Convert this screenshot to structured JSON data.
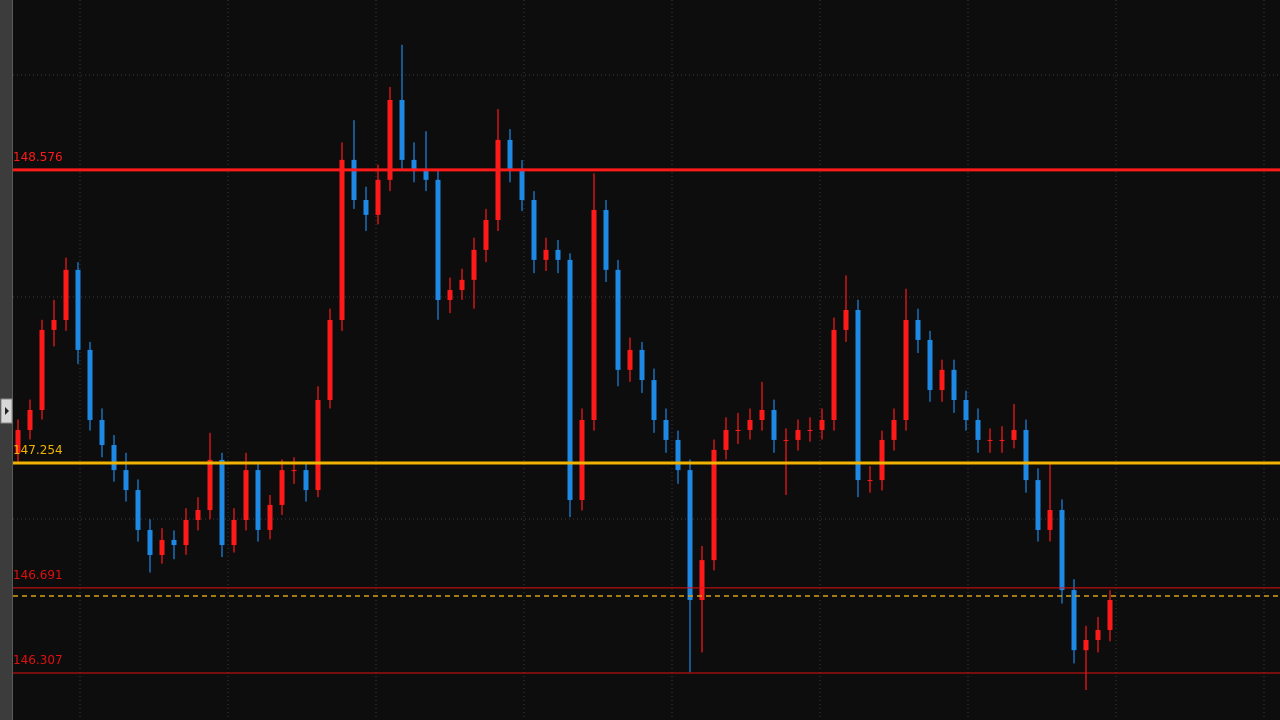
{
  "chart_data": {
    "type": "candlestick",
    "ylim": [
      146.095,
      149.342
    ],
    "up_color": "#ff1a1a",
    "down_color": "#1e88e5",
    "grid": true,
    "current_price": {
      "value": 146.654,
      "color": "#d4a017"
    },
    "levels": [
      {
        "value": 148.576,
        "color": "#ff1a1a",
        "width": 3
      },
      {
        "value": 147.254,
        "color": "#f0b400",
        "width": 3
      },
      {
        "value": 146.691,
        "color": "#e01010",
        "width": 1
      },
      {
        "value": 146.307,
        "color": "#e01010",
        "width": 1
      }
    ],
    "ohlc": [
      [
        147.3,
        147.45,
        147.25,
        147.403
      ],
      [
        147.403,
        147.54,
        147.36,
        147.493
      ],
      [
        147.493,
        147.9,
        147.45,
        147.854
      ],
      [
        147.854,
        147.99,
        147.78,
        147.899
      ],
      [
        147.899,
        148.18,
        147.85,
        148.125
      ],
      [
        148.125,
        148.16,
        147.7,
        147.764
      ],
      [
        147.764,
        147.8,
        147.4,
        147.448
      ],
      [
        147.448,
        147.5,
        147.28,
        147.335
      ],
      [
        147.335,
        147.38,
        147.17,
        147.222
      ],
      [
        147.222,
        147.3,
        147.08,
        147.132
      ],
      [
        147.132,
        147.18,
        146.9,
        146.952
      ],
      [
        146.952,
        147.0,
        146.76,
        146.839
      ],
      [
        146.839,
        146.96,
        146.8,
        146.907
      ],
      [
        146.907,
        146.95,
        146.82,
        146.884
      ],
      [
        146.884,
        147.05,
        146.84,
        146.997
      ],
      [
        146.997,
        147.1,
        146.95,
        147.042
      ],
      [
        147.042,
        147.39,
        147.0,
        147.268
      ],
      [
        147.268,
        147.3,
        146.83,
        146.884
      ],
      [
        146.884,
        147.05,
        146.85,
        146.997
      ],
      [
        146.997,
        147.3,
        146.95,
        147.222
      ],
      [
        147.222,
        147.26,
        146.9,
        146.952
      ],
      [
        146.952,
        147.11,
        146.91,
        147.065
      ],
      [
        147.065,
        147.27,
        147.02,
        147.222
      ],
      [
        147.222,
        147.28,
        147.16,
        147.222
      ],
      [
        147.222,
        147.25,
        147.08,
        147.132
      ],
      [
        147.132,
        147.6,
        147.1,
        147.538
      ],
      [
        147.538,
        147.95,
        147.5,
        147.899
      ],
      [
        147.899,
        148.7,
        147.85,
        148.621
      ],
      [
        148.621,
        148.8,
        148.4,
        148.44
      ],
      [
        148.44,
        148.5,
        148.3,
        148.373
      ],
      [
        148.373,
        148.6,
        148.33,
        148.531
      ],
      [
        148.531,
        148.95,
        148.48,
        148.891
      ],
      [
        148.891,
        149.14,
        148.58,
        148.621
      ],
      [
        148.621,
        148.7,
        148.52,
        148.576
      ],
      [
        148.576,
        148.75,
        148.48,
        148.531
      ],
      [
        148.531,
        148.58,
        147.9,
        147.989
      ],
      [
        147.989,
        148.09,
        147.93,
        148.034
      ],
      [
        148.034,
        148.13,
        147.99,
        148.08
      ],
      [
        148.08,
        148.27,
        147.95,
        148.215
      ],
      [
        148.215,
        148.4,
        148.16,
        148.35
      ],
      [
        148.35,
        148.85,
        148.3,
        148.711
      ],
      [
        148.711,
        148.76,
        148.52,
        148.576
      ],
      [
        148.576,
        148.62,
        148.39,
        148.44
      ],
      [
        148.44,
        148.48,
        148.11,
        148.17
      ],
      [
        148.17,
        148.27,
        148.12,
        148.215
      ],
      [
        148.215,
        148.26,
        148.11,
        148.17
      ],
      [
        148.17,
        148.2,
        147.01,
        147.087
      ],
      [
        147.087,
        147.5,
        147.04,
        147.448
      ],
      [
        147.448,
        148.56,
        147.4,
        148.395
      ],
      [
        148.395,
        148.44,
        148.07,
        148.125
      ],
      [
        148.125,
        148.17,
        147.6,
        147.674
      ],
      [
        147.674,
        147.82,
        147.62,
        147.764
      ],
      [
        147.764,
        147.8,
        147.57,
        147.628
      ],
      [
        147.628,
        147.68,
        147.39,
        147.448
      ],
      [
        147.448,
        147.5,
        147.3,
        147.358
      ],
      [
        147.358,
        147.4,
        147.16,
        147.222
      ],
      [
        147.222,
        147.27,
        146.311,
        146.636
      ],
      [
        146.636,
        146.88,
        146.4,
        146.816
      ],
      [
        146.816,
        147.36,
        146.77,
        147.313
      ],
      [
        147.313,
        147.46,
        147.27,
        147.403
      ],
      [
        147.403,
        147.48,
        147.34,
        147.403
      ],
      [
        147.403,
        147.5,
        147.36,
        147.448
      ],
      [
        147.448,
        147.62,
        147.4,
        147.493
      ],
      [
        147.493,
        147.54,
        147.3,
        147.358
      ],
      [
        147.358,
        147.41,
        147.11,
        147.358
      ],
      [
        147.358,
        147.45,
        147.31,
        147.403
      ],
      [
        147.403,
        147.46,
        147.35,
        147.403
      ],
      [
        147.403,
        147.5,
        147.36,
        147.448
      ],
      [
        147.448,
        147.91,
        147.4,
        147.854
      ],
      [
        147.854,
        148.1,
        147.8,
        147.944
      ],
      [
        147.944,
        147.99,
        147.1,
        147.177
      ],
      [
        147.177,
        147.24,
        147.12,
        147.177
      ],
      [
        147.177,
        147.4,
        147.13,
        147.358
      ],
      [
        147.358,
        147.5,
        147.31,
        147.448
      ],
      [
        147.448,
        148.04,
        147.4,
        147.899
      ],
      [
        147.899,
        147.95,
        147.75,
        147.809
      ],
      [
        147.809,
        147.85,
        147.53,
        147.583
      ],
      [
        147.583,
        147.72,
        147.53,
        147.674
      ],
      [
        147.674,
        147.72,
        147.48,
        147.538
      ],
      [
        147.538,
        147.58,
        147.4,
        147.448
      ],
      [
        147.448,
        147.5,
        147.3,
        147.358
      ],
      [
        147.358,
        147.41,
        147.3,
        147.358
      ],
      [
        147.358,
        147.42,
        147.3,
        147.358
      ],
      [
        147.358,
        147.52,
        147.32,
        147.403
      ],
      [
        147.403,
        147.45,
        147.12,
        147.177
      ],
      [
        147.177,
        147.23,
        146.9,
        146.952
      ],
      [
        146.952,
        147.25,
        146.9,
        147.042
      ],
      [
        147.042,
        147.09,
        146.62,
        146.681
      ],
      [
        146.681,
        146.73,
        146.35,
        146.41
      ],
      [
        146.41,
        146.52,
        146.23,
        146.456
      ],
      [
        146.456,
        146.56,
        146.4,
        146.501
      ],
      [
        146.501,
        146.68,
        146.45,
        146.636
      ]
    ]
  }
}
